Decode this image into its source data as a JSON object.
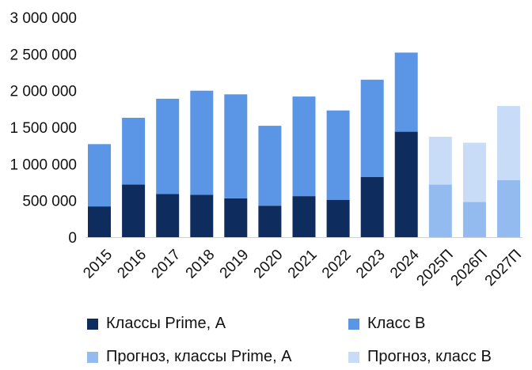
{
  "chart_data": {
    "type": "bar",
    "stacked": true,
    "categories": [
      "2015",
      "2016",
      "2017",
      "2018",
      "2019",
      "2020",
      "2021",
      "2022",
      "2023",
      "2024",
      "2025П",
      "2026П",
      "2027П"
    ],
    "series": [
      {
        "name": "Классы Prime, А",
        "color": "#0e2c5e",
        "values": [
          420000,
          720000,
          590000,
          580000,
          530000,
          430000,
          560000,
          510000,
          820000,
          1440000,
          null,
          null,
          null
        ]
      },
      {
        "name": "Класс B",
        "color": "#5b96e6",
        "values": [
          850000,
          910000,
          1300000,
          1420000,
          1420000,
          1090000,
          1360000,
          1220000,
          1330000,
          1080000,
          null,
          null,
          null
        ]
      },
      {
        "name": "Прогноз, классы Prime, А",
        "color": "#94bbf0",
        "values": [
          null,
          null,
          null,
          null,
          null,
          null,
          null,
          null,
          null,
          null,
          720000,
          480000,
          780000
        ]
      },
      {
        "name": "Прогноз, класс B",
        "color": "#c9dcf7",
        "values": [
          null,
          null,
          null,
          null,
          null,
          null,
          null,
          null,
          null,
          null,
          650000,
          810000,
          1010000
        ]
      }
    ],
    "ylim": [
      0,
      3000000
    ],
    "yticks": [
      0,
      500000,
      1000000,
      1500000,
      2000000,
      2500000,
      3000000
    ],
    "ytick_labels": [
      "0",
      "500 000",
      "1 000 000",
      "1 500 000",
      "2 000 000",
      "2 500 000",
      "3 000 000"
    ],
    "grid": false,
    "legend_position": "bottom"
  }
}
